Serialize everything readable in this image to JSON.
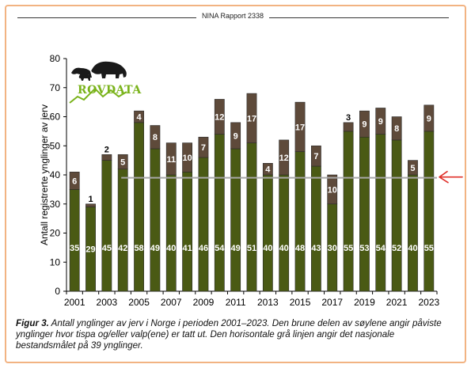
{
  "header": {
    "title": "NINA Rapport 2338"
  },
  "logo": {
    "text": "ROVDATA"
  },
  "chart_data": {
    "type": "bar",
    "stacked": true,
    "ylabel": "Antall registrerte ynglinger av jerv",
    "xlabel": "",
    "ylim": [
      0,
      80
    ],
    "yticks": [
      0,
      10,
      20,
      30,
      40,
      50,
      60,
      70,
      80
    ],
    "categories": [
      "2001",
      "2002",
      "2003",
      "2004",
      "2005",
      "2006",
      "2007",
      "2008",
      "2009",
      "2010",
      "2011",
      "2012",
      "2013",
      "2014",
      "2015",
      "2016",
      "2017",
      "2018",
      "2019",
      "2020",
      "2021",
      "2022",
      "2023"
    ],
    "xtick_labels": [
      "2001",
      "2003",
      "2005",
      "2007",
      "2009",
      "2011",
      "2013",
      "2015",
      "2017",
      "2019",
      "2021",
      "2023"
    ],
    "series": [
      {
        "values": [
          35,
          29,
          45,
          42,
          58,
          49,
          40,
          41,
          46,
          54,
          49,
          51,
          40,
          40,
          48,
          43,
          30,
          55,
          53,
          54,
          52,
          40,
          55
        ],
        "color": "#4a5a14"
      },
      {
        "values": [
          6,
          1,
          2,
          5,
          4,
          8,
          11,
          10,
          7,
          12,
          9,
          17,
          4,
          12,
          17,
          7,
          10,
          3,
          9,
          9,
          8,
          5,
          9
        ],
        "color": "#5e4a3a"
      }
    ],
    "reference_line": {
      "y": 39,
      "color": "#a8a8a8"
    },
    "annotation_arrow_color": "#e0302a",
    "grid": false
  },
  "caption": {
    "label": "Figur 3.",
    "text": " Antall ynglinger av jerv i Norge i perioden 2001–2023. Den brune delen av søylene angir påviste ynglinger hvor tispa og/eller valp(ene) er tatt ut. Den horisontale grå linjen angir det nasjonale bestandsmålet på 39 ynglinger."
  }
}
